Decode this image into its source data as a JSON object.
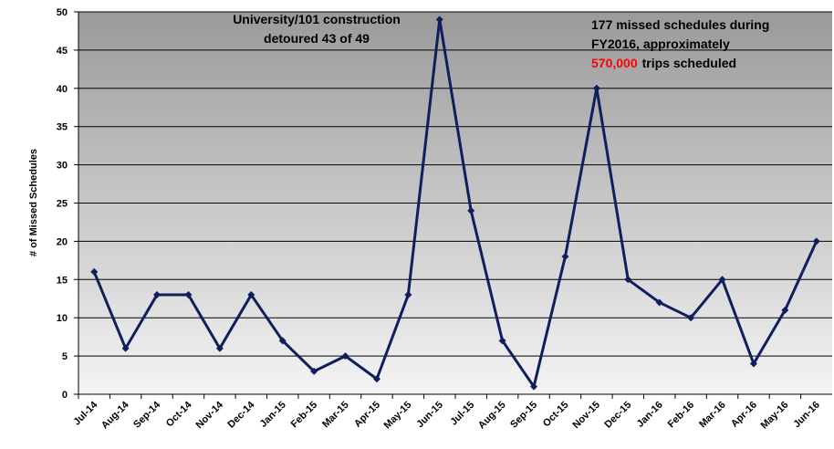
{
  "chart_data": {
    "type": "line",
    "y_label": "# of Missed Schedules",
    "annotations": [
      {
        "lines": [
          "University/101 construction",
          "detoured 43 of 49"
        ]
      },
      {
        "lines": [
          "177 missed schedules during",
          "FY2016, approximately"
        ],
        "highlight": "570,000",
        "highlight_color": "#ff0000",
        "rest": "trips scheduled"
      }
    ],
    "categories": [
      "Jul-14",
      "Aug-14",
      "Sep-14",
      "Oct-14",
      "Nov-14",
      "Dec-14",
      "Jan-15",
      "Feb-15",
      "Mar-15",
      "Apr-15",
      "May-15",
      "Jun-15",
      "Jul-15",
      "Aug-15",
      "Sep-15",
      "Oct-15",
      "Nov-15",
      "Dec-15",
      "Jan-16",
      "Feb-16",
      "Mar-16",
      "Apr-16",
      "May-16",
      "Jun-16"
    ],
    "values": [
      16,
      6,
      13,
      13,
      6,
      13,
      7,
      3,
      5,
      2,
      13,
      49,
      24,
      7,
      1,
      18,
      40,
      15,
      12,
      10,
      15,
      4,
      11,
      20
    ],
    "color": "#0f1f5c",
    "ylim": [
      0,
      50
    ],
    "yticks": [
      0,
      5,
      10,
      15,
      20,
      25,
      30,
      35,
      40,
      45,
      50
    ],
    "grid": true
  }
}
